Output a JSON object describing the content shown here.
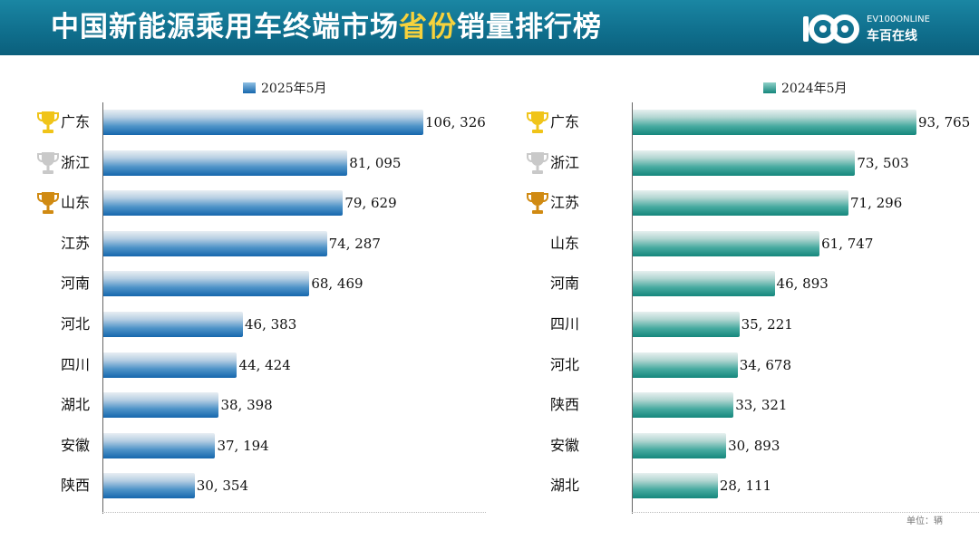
{
  "header": {
    "title_main": "中国新能源乘用车终端市场",
    "title_highlight": "省份",
    "title_tail": "销量排行榜",
    "logo_top": "EV100ONLINE",
    "logo_bottom": "车百在线"
  },
  "colors": {
    "header_bg": "#0f6e8c",
    "highlight": "#f7d23c",
    "series_2025": "#1a6fb5",
    "series_2024": "#1a9085",
    "gold": "#f0c419",
    "silver": "#c9c9c9",
    "bronze": "#d08a12"
  },
  "unit_note": "单位：辆",
  "chart_data": [
    {
      "type": "bar",
      "orientation": "horizontal",
      "legend": "2025年5月",
      "categories": [
        "广东",
        "浙江",
        "山东",
        "江苏",
        "河南",
        "河北",
        "四川",
        "湖北",
        "安徽",
        "陕西"
      ],
      "values": [
        106326,
        81095,
        79629,
        74287,
        68469,
        46383,
        44424,
        38398,
        37194,
        30354
      ],
      "value_labels": [
        "106, 326",
        "81, 095",
        "79, 629",
        "74, 287",
        "68, 469",
        "46, 383",
        "44, 424",
        "38, 398",
        "37, 194",
        "30, 354"
      ],
      "medals": [
        "gold",
        "silver",
        "bronze"
      ],
      "xlim": [
        0,
        124000
      ]
    },
    {
      "type": "bar",
      "orientation": "horizontal",
      "legend": "2024年5月",
      "categories": [
        "广东",
        "浙江",
        "江苏",
        "山东",
        "河南",
        "四川",
        "河北",
        "陕西",
        "安徽",
        "湖北"
      ],
      "values": [
        93765,
        73503,
        71296,
        61747,
        46893,
        35221,
        34678,
        33321,
        30893,
        28111
      ],
      "value_labels": [
        "93, 765",
        "73, 503",
        "71, 296",
        "61, 747",
        "46, 893",
        "35, 221",
        "34, 678",
        "33, 321",
        "30, 893",
        "28, 111"
      ],
      "medals": [
        "gold",
        "silver",
        "bronze"
      ],
      "xlim": [
        0,
        96000
      ]
    }
  ]
}
